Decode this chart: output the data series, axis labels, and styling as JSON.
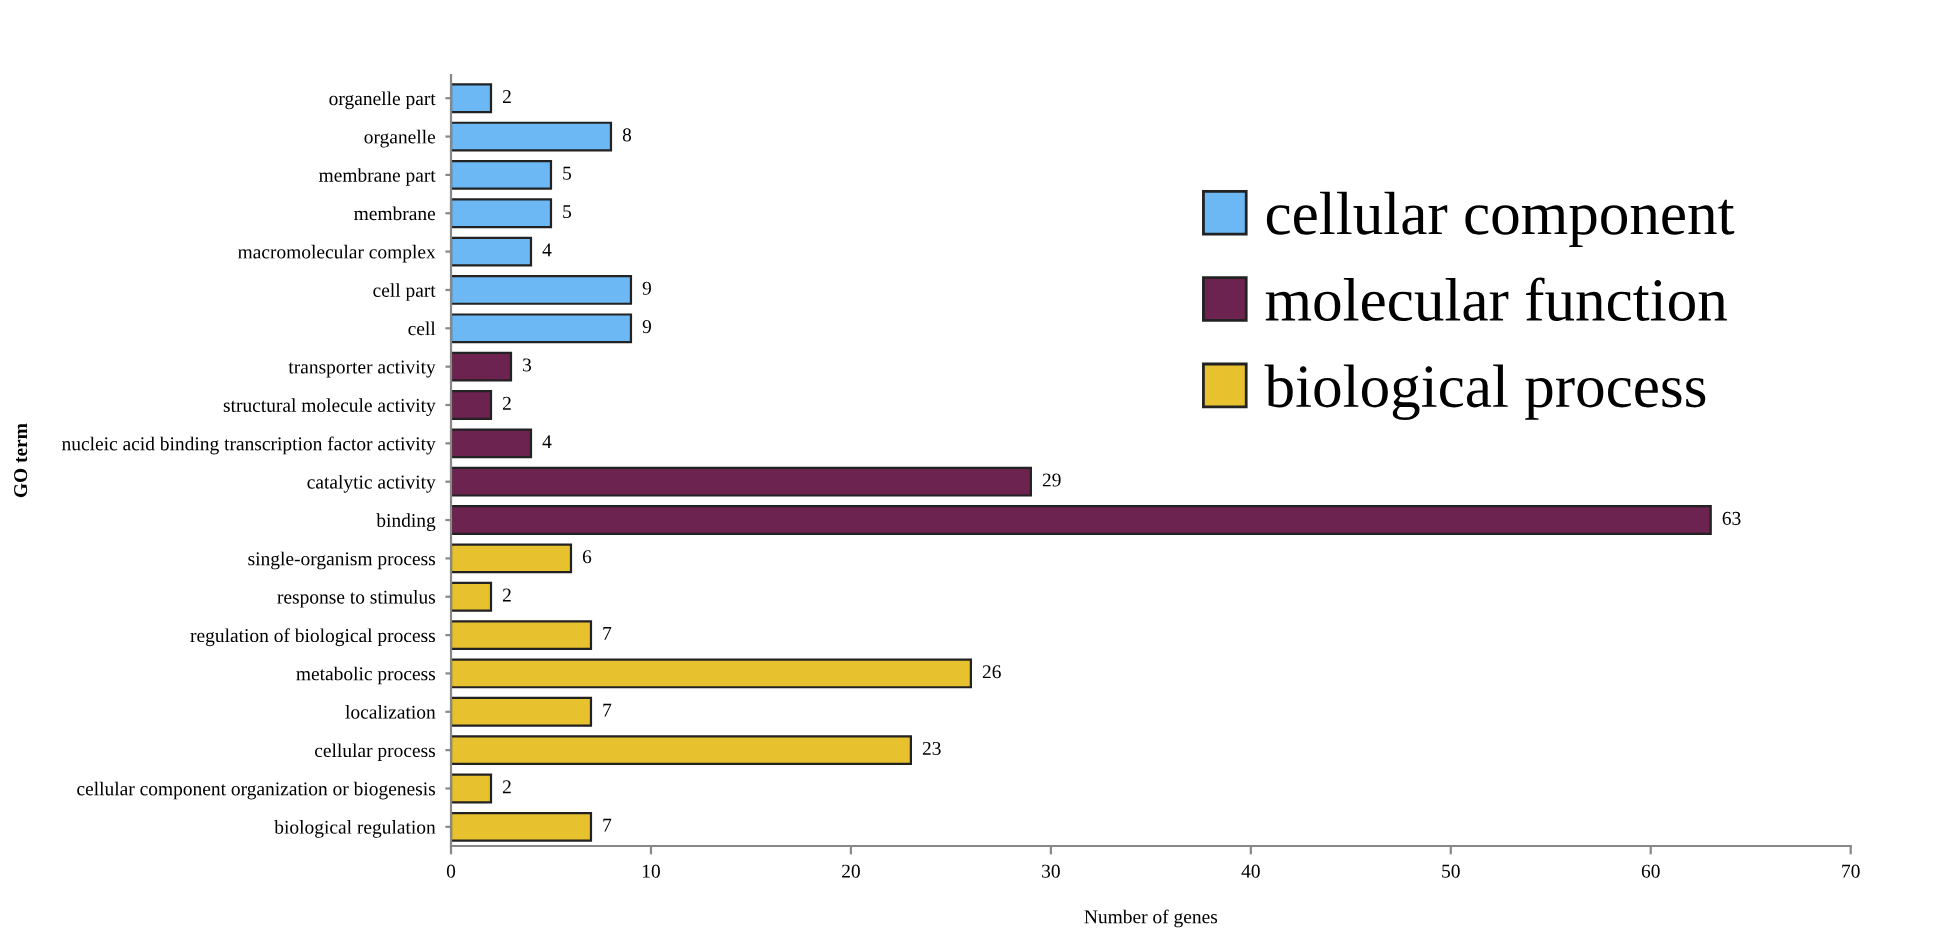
{
  "chart_data": {
    "type": "bar",
    "orientation": "horizontal",
    "xlabel": "Number of genes",
    "ylabel": "GO term",
    "categories": [
      "organelle part",
      "organelle",
      "membrane part",
      "membrane",
      "macromolecular complex",
      "cell part",
      "cell",
      "transporter activity",
      "structural molecule activity",
      "nucleic acid binding transcription factor activity",
      "catalytic activity",
      "binding",
      "single-organism process",
      "response to stimulus",
      "regulation of biological process",
      "metabolic process",
      "localization",
      "cellular process",
      "cellular component organization or biogenesis",
      "biological regulation"
    ],
    "series": [
      {
        "name": "cellular component",
        "color": "#6bb8f5",
        "values": [
          2,
          8,
          5,
          5,
          4,
          9,
          9,
          null,
          null,
          null,
          null,
          null,
          null,
          null,
          null,
          null,
          null,
          null,
          null,
          null
        ]
      },
      {
        "name": "molecular function",
        "color": "#6d2350",
        "values": [
          null,
          null,
          null,
          null,
          null,
          null,
          null,
          3,
          2,
          4,
          29,
          63,
          null,
          null,
          null,
          null,
          null,
          null,
          null,
          null
        ]
      },
      {
        "name": "biological process",
        "color": "#e8c22e",
        "values": [
          null,
          null,
          null,
          null,
          null,
          null,
          null,
          null,
          null,
          null,
          null,
          null,
          6,
          2,
          7,
          26,
          7,
          23,
          2,
          7
        ]
      }
    ],
    "xlim": [
      0,
      70
    ],
    "xticks": [
      0,
      10,
      20,
      30,
      40,
      50,
      60,
      70
    ],
    "data_labels": true,
    "legend": "top right",
    "grid": false
  }
}
